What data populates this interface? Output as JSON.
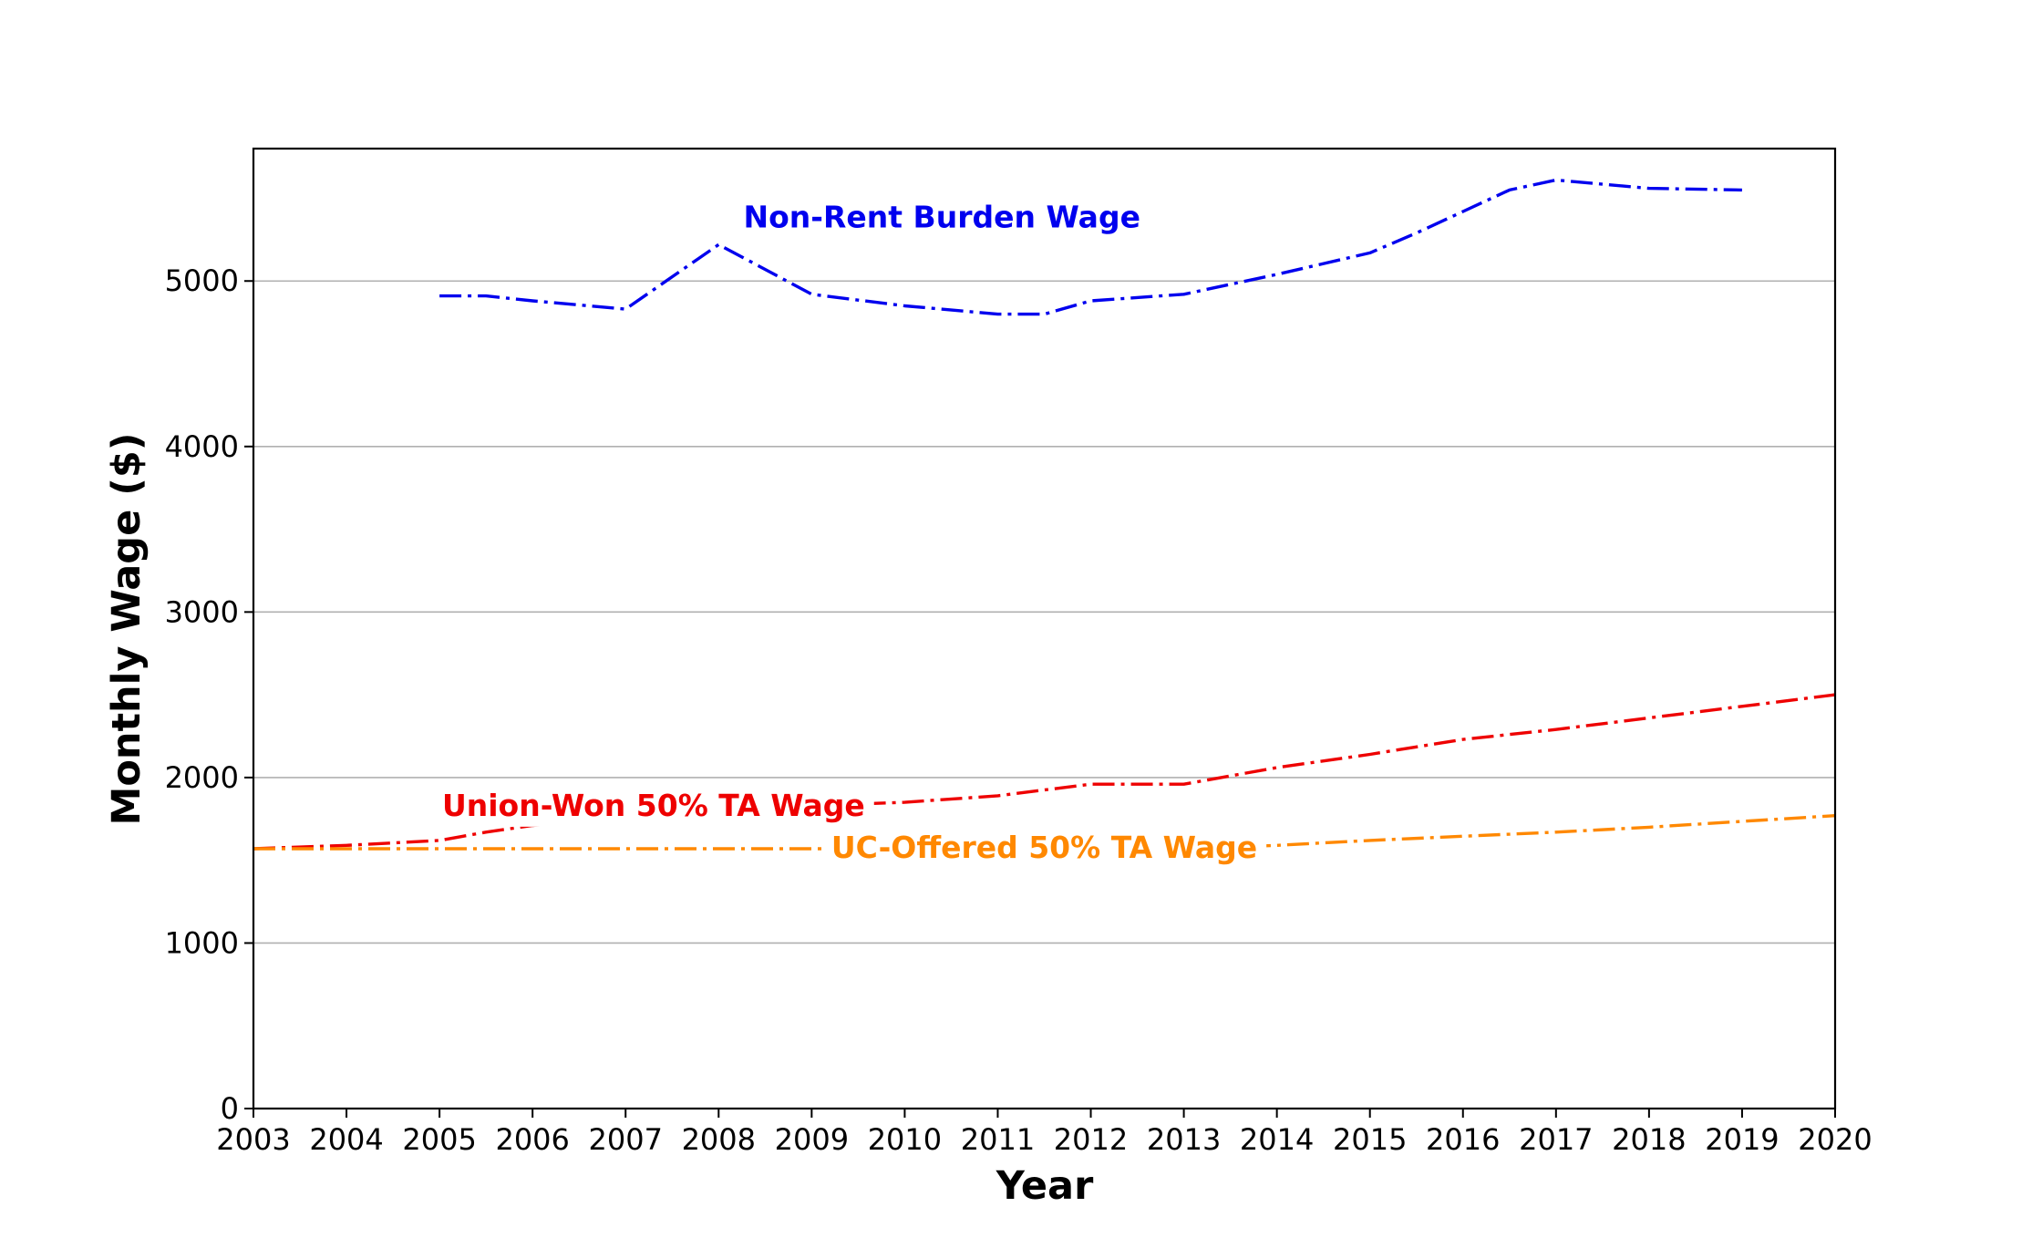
{
  "chart_data": {
    "type": "line",
    "title": "",
    "xlabel": "Year",
    "ylabel": "Monthly Wage ($)",
    "xlim": [
      2003,
      2020
    ],
    "ylim": [
      0,
      5800
    ],
    "x_ticks": [
      2003,
      2004,
      2005,
      2006,
      2007,
      2008,
      2009,
      2010,
      2011,
      2012,
      2013,
      2014,
      2015,
      2016,
      2017,
      2018,
      2019,
      2020
    ],
    "y_ticks": [
      0,
      1000,
      2000,
      3000,
      4000,
      5000
    ],
    "grid": "horizontal",
    "line_style": "dash-dot",
    "legend": "none (series labeled inline)",
    "series": [
      {
        "name": "Non-Rent Burden Wage",
        "color": "#0000ee",
        "x": [
          2005,
          2005.5,
          2006,
          2007,
          2008,
          2009,
          2010,
          2011,
          2011.5,
          2012,
          2013,
          2014,
          2015,
          2015.5,
          2016,
          2016.5,
          2017,
          2018,
          2019
        ],
        "y": [
          4910,
          4910,
          4880,
          4830,
          5220,
          4920,
          4850,
          4800,
          4800,
          4880,
          4920,
          5040,
          5170,
          5290,
          5420,
          5550,
          5610,
          5560,
          5550
        ]
      },
      {
        "name": "Union-Won 50% TA Wage",
        "color": "#ee0000",
        "x": [
          2003,
          2004,
          2005,
          2005.5,
          2006,
          2007,
          2008,
          2009,
          2010,
          2011,
          2012,
          2013,
          2014,
          2015,
          2016,
          2017,
          2018,
          2019,
          2020
        ],
        "y": [
          1570,
          1590,
          1620,
          1670,
          1710,
          1760,
          1790,
          1830,
          1850,
          1890,
          1960,
          1960,
          2060,
          2140,
          2230,
          2290,
          2360,
          2430,
          2500
        ]
      },
      {
        "name": "UC-Offered 50% TA Wage",
        "color": "#ff8800",
        "x": [
          2003,
          2004,
          2005,
          2006,
          2007,
          2008,
          2009,
          2010,
          2011,
          2012,
          2013,
          2014,
          2015,
          2016,
          2017,
          2018,
          2019,
          2020
        ],
        "y": [
          1570,
          1570,
          1570,
          1570,
          1570,
          1570,
          1570,
          1570,
          1570,
          1570,
          1570,
          1590,
          1620,
          1645,
          1670,
          1700,
          1735,
          1770
        ]
      }
    ]
  }
}
